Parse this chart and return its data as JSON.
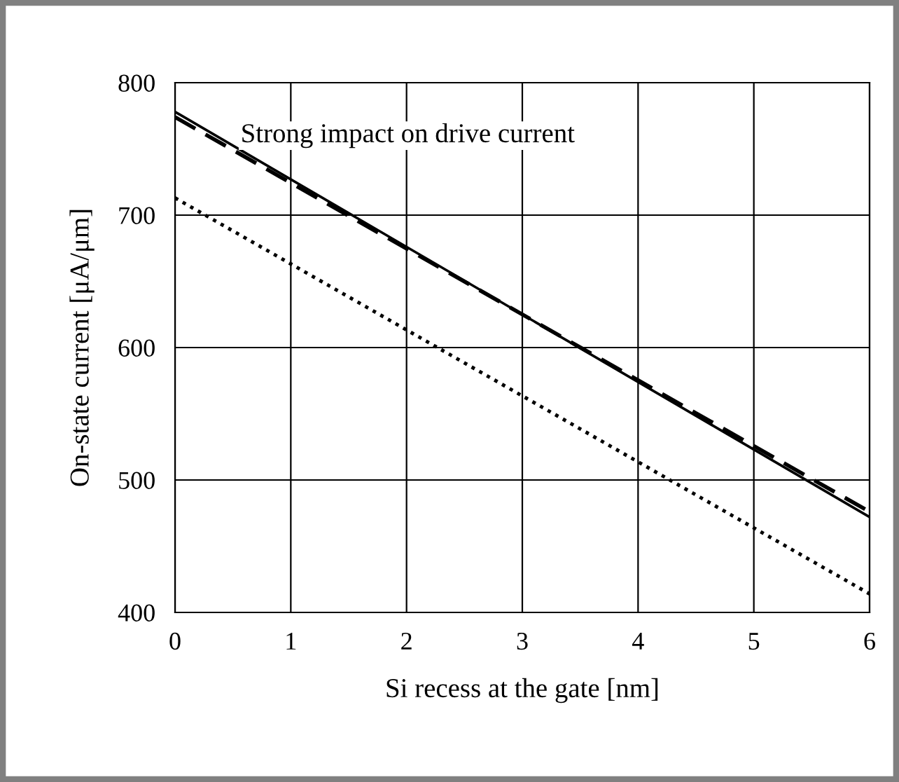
{
  "chart_data": {
    "type": "line",
    "xlabel": "Si recess at the gate [nm]",
    "ylabel": "On-state current [μA/μm]",
    "x": [
      0,
      6
    ],
    "series": [
      {
        "color": "#000000",
        "line_style": "solid",
        "values": [
          778,
          472
        ]
      },
      {
        "color": "#000000",
        "line_style": "dashed",
        "values": [
          774,
          476
        ]
      },
      {
        "color": "#000000",
        "line_style": "dotted",
        "values": [
          713,
          414
        ]
      }
    ],
    "xlim": [
      0,
      6
    ],
    "xticks": [
      0,
      1,
      2,
      3,
      4,
      5,
      6
    ],
    "ylim": [
      400,
      800
    ],
    "yticks": [
      400,
      500,
      600,
      700,
      800
    ],
    "grid": true,
    "annotations": [
      "Strong impact on drive current"
    ]
  }
}
